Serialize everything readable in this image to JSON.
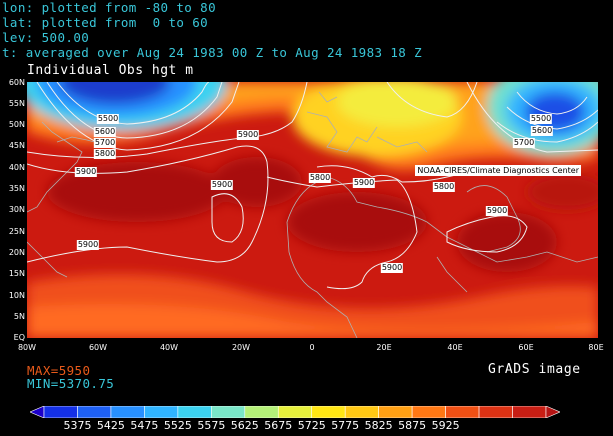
{
  "header": {
    "lon_line": "lon: plotted from -80 to 80",
    "lat_line": "lat: plotted from  0 to 60",
    "lev_line": "lev: 500.00",
    "time_line": "t: averaged over Aug 24 1983 00 Z to Aug 24 1983 18 Z"
  },
  "variable_title": "Individual Obs hgt m",
  "credit": "NOAA-CIRES/Climate Diagnostics Center",
  "lat_labels": [
    "60N",
    "55N",
    "50N",
    "45N",
    "40N",
    "35N",
    "30N",
    "25N",
    "20N",
    "15N",
    "10N",
    "5N",
    "EQ"
  ],
  "lon_labels": [
    "80W",
    "60W",
    "40W",
    "20W",
    "0",
    "20E",
    "40E",
    "60E",
    "80E"
  ],
  "contour_labels": [
    {
      "text": "5500"
    },
    {
      "text": "5600"
    },
    {
      "text": "5700"
    },
    {
      "text": "5800"
    },
    {
      "text": "5900"
    },
    {
      "text": "5900"
    },
    {
      "text": "5900"
    },
    {
      "text": "5900"
    },
    {
      "text": "5800"
    },
    {
      "text": "5900"
    },
    {
      "text": "5800"
    },
    {
      "text": "5900"
    },
    {
      "text": "5900"
    },
    {
      "text": "5500"
    },
    {
      "text": "5600"
    },
    {
      "text": "5700"
    }
  ],
  "stats": {
    "max_label": "MAX=5950",
    "min_label": "MIN=5370.75",
    "max_color": "#e85a1a",
    "min_color": "#39c6d8"
  },
  "footer_label": "GrADS image",
  "colorbar": {
    "labels": [
      "5375",
      "5425",
      "5475",
      "5525",
      "5575",
      "5625",
      "5675",
      "5725",
      "5775",
      "5825",
      "5875",
      "5925"
    ],
    "colors": [
      "#1c00c8",
      "#1430e6",
      "#1e60f5",
      "#2890ff",
      "#30b4ff",
      "#3cd2f0",
      "#7ae6c8",
      "#b4f078",
      "#e6f03c",
      "#ffe614",
      "#ffc814",
      "#ffa014",
      "#ff7814",
      "#f05014",
      "#dc3214",
      "#c81e14",
      "#b41414"
    ]
  },
  "colors": {
    "background": "#000000",
    "header_text": "#39c6d8",
    "contour": "#f0f0f0",
    "coastline": "#b0b0b0"
  }
}
